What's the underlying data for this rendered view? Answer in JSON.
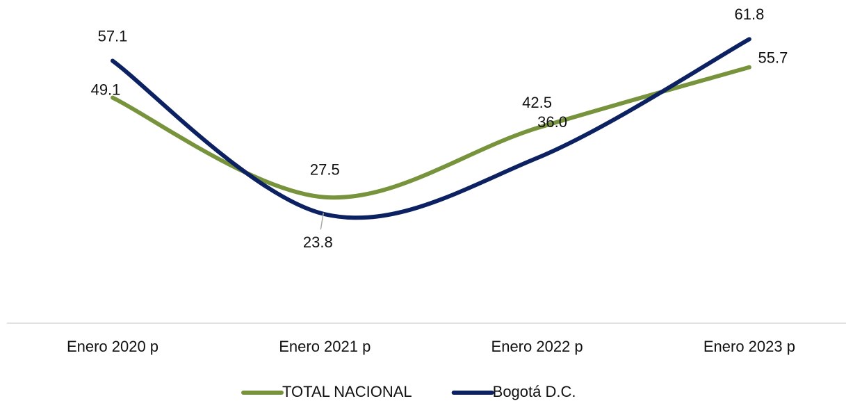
{
  "chart_data": {
    "type": "line",
    "categories": [
      "Enero 2020 p",
      "Enero 2021 p",
      "Enero 2022 p",
      "Enero 2023 p"
    ],
    "series": [
      {
        "name": "TOTAL NACIONAL",
        "color": "#77933c",
        "values": [
          49.1,
          27.5,
          42.5,
          55.7
        ],
        "value_labels": [
          "49.1",
          "27.5",
          "42.5",
          "55.7"
        ]
      },
      {
        "name": "Bogotá D.C.",
        "color": "#0c2161",
        "values": [
          57.1,
          23.8,
          36.0,
          61.8
        ],
        "value_labels": [
          "57.1",
          "23.8",
          "36.0",
          "61.8"
        ]
      }
    ],
    "ylim": [
      0,
      70
    ],
    "legend": "bottom"
  }
}
